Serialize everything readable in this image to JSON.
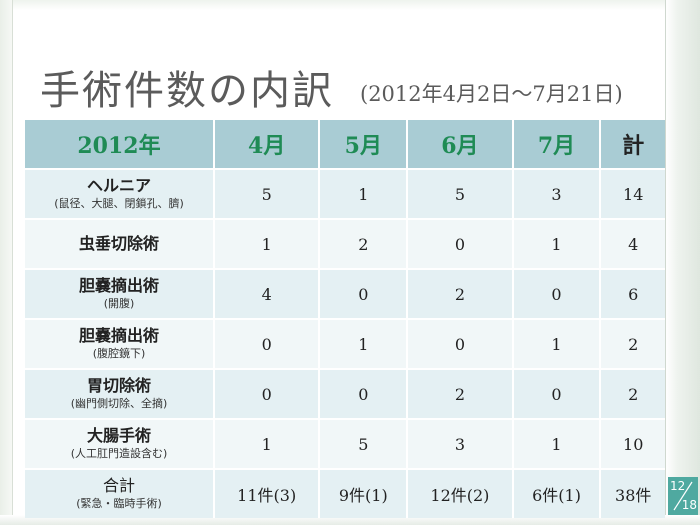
{
  "slide": {
    "title": "手術件数の内訳",
    "subtitle": "(2012年4月2日～7月21日)"
  },
  "table": {
    "headers": [
      "2012年",
      "4月",
      "5月",
      "6月",
      "7月",
      "計"
    ],
    "rows": [
      {
        "label": "ヘルニア",
        "sub": "(鼠径、大腿、閉鎖孔、臍)",
        "values": [
          "5",
          "1",
          "5",
          "3",
          "14"
        ]
      },
      {
        "label": "虫垂切除術",
        "sub": "",
        "values": [
          "1",
          "2",
          "0",
          "1",
          "4"
        ]
      },
      {
        "label": "胆嚢摘出術",
        "sub": "(開腹)",
        "values": [
          "4",
          "0",
          "2",
          "0",
          "6"
        ]
      },
      {
        "label": "胆嚢摘出術",
        "sub": "(腹腔鏡下)",
        "values": [
          "0",
          "1",
          "0",
          "1",
          "2"
        ]
      },
      {
        "label": "胃切除術",
        "sub": "(幽門側切除、全摘)",
        "values": [
          "0",
          "0",
          "2",
          "0",
          "2"
        ]
      },
      {
        "label": "大腸手術",
        "sub": "(人工肛門造設含む)",
        "values": [
          "1",
          "5",
          "3",
          "1",
          "10"
        ]
      },
      {
        "label": "合計",
        "sub": "(緊急・臨時手術)",
        "values": [
          "11件(3)",
          "9件(1)",
          "12件(2)",
          "6件(1)",
          "38件"
        ]
      }
    ]
  },
  "page": {
    "current": "12",
    "total": "18"
  },
  "colors": {
    "header_bg": "#a9ccd4",
    "header_text": "#1f8b55",
    "row_bg": "#e4f0f3",
    "row_alt_bg": "#f1f7f8",
    "page_badge": "#4fa9a0"
  }
}
